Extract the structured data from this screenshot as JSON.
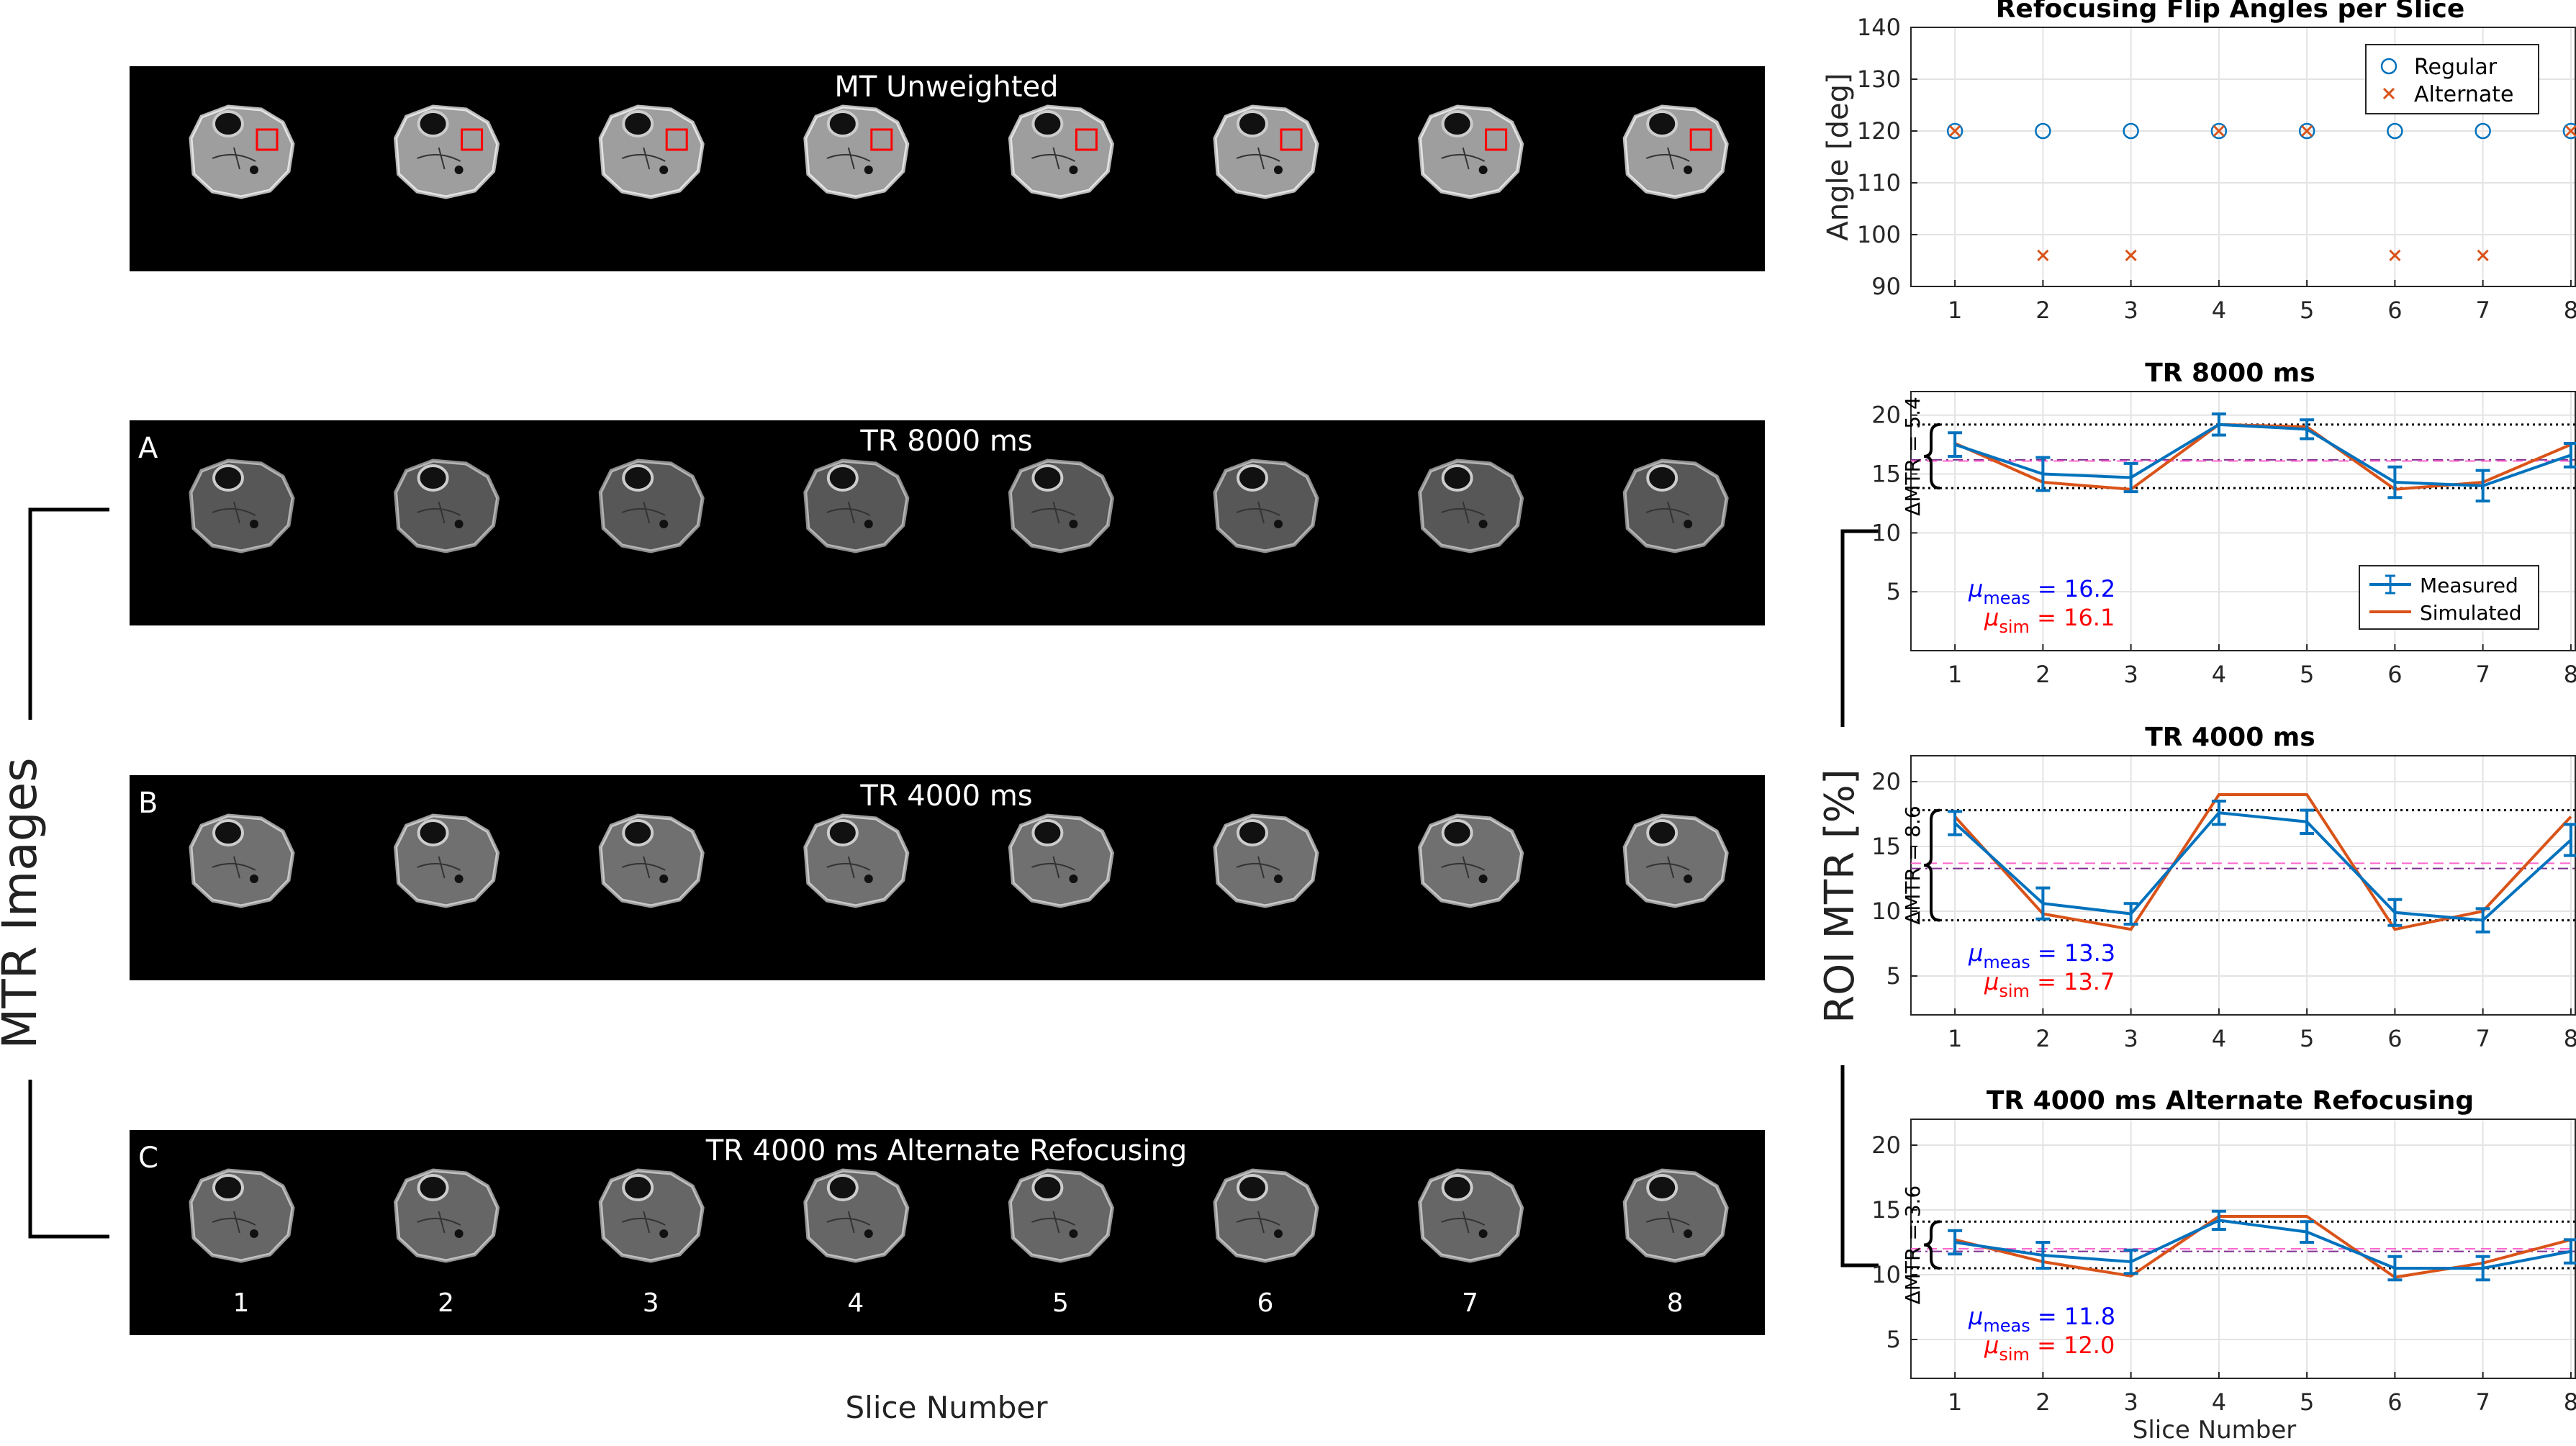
{
  "colors": {
    "measured": "#0072BD",
    "simulated": "#D95319",
    "mu_meas": "#0000FF",
    "mu_sim": "#FF0000",
    "roi_box": "#FF0000"
  },
  "left": {
    "ylabel": "MTR Images",
    "xlabel": "Slice Number",
    "slice_numbers": [
      "1",
      "2",
      "3",
      "4",
      "5",
      "6",
      "7",
      "8"
    ],
    "strips": [
      {
        "letter": "",
        "title": "MT Unweighted",
        "brightness": 0.62,
        "roi": true,
        "show_numbers": false
      },
      {
        "letter": "A",
        "title": "TR 8000 ms",
        "brightness": 0.34,
        "roi": false,
        "show_numbers": false
      },
      {
        "letter": "B",
        "title": "TR 4000 ms",
        "brightness": 0.44,
        "roi": false,
        "show_numbers": false
      },
      {
        "letter": "C",
        "title": "TR 4000 ms Alternate Refocusing",
        "brightness": 0.4,
        "roi": false,
        "show_numbers": true
      }
    ]
  },
  "right": {
    "shared_ylabel": "ROI MTR [%]",
    "xlabel": "Slice Number"
  },
  "chart_data": [
    {
      "type": "scatter",
      "title": "Refocusing Flip Angles per Slice",
      "xlabel": "",
      "ylabel": "Angle [deg]",
      "x": [
        1,
        2,
        3,
        4,
        5,
        6,
        7,
        8
      ],
      "xlim": [
        0.5,
        8.05
      ],
      "ylim": [
        90,
        140
      ],
      "yticks": [
        90,
        100,
        110,
        120,
        130,
        140
      ],
      "grid": true,
      "legend": "top-right",
      "series": [
        {
          "name": "Regular",
          "marker": "circle",
          "values": [
            120,
            120,
            120,
            120,
            120,
            120,
            120,
            120
          ]
        },
        {
          "name": "Alternate",
          "marker": "x",
          "values": [
            120,
            96,
            96,
            120,
            120,
            96,
            96,
            120
          ]
        }
      ]
    },
    {
      "type": "line",
      "title": "TR 8000 ms",
      "xlabel": "",
      "ylabel": "",
      "x": [
        1,
        2,
        3,
        4,
        5,
        6,
        7,
        8
      ],
      "xlim": [
        0.5,
        8.05
      ],
      "ylim": [
        0,
        22
      ],
      "yticks": [
        5,
        10,
        15,
        20
      ],
      "grid": true,
      "legend": "bottom-right",
      "series": [
        {
          "name": "Measured",
          "values": [
            17.5,
            15.0,
            14.7,
            19.2,
            18.8,
            14.3,
            14.0,
            16.6
          ],
          "errors": [
            1.0,
            1.4,
            1.2,
            0.9,
            0.8,
            1.3,
            1.3,
            1.0
          ]
        },
        {
          "name": "Simulated",
          "values": [
            17.6,
            14.3,
            13.7,
            19.2,
            19.0,
            13.7,
            14.3,
            17.5
          ]
        }
      ],
      "band": [
        13.8,
        19.2
      ],
      "mean_measured": 16.2,
      "mean_simulated": 16.1,
      "delta_label": "ΔMTR = 5.4",
      "mu_meas_text": "= 16.2",
      "mu_sim_text": "= 16.1"
    },
    {
      "type": "line",
      "title": "TR 4000 ms",
      "xlabel": "",
      "ylabel": "",
      "x": [
        1,
        2,
        3,
        4,
        5,
        6,
        7,
        8
      ],
      "xlim": [
        0.5,
        8.05
      ],
      "ylim": [
        2,
        22
      ],
      "yticks": [
        5,
        10,
        15,
        20
      ],
      "grid": true,
      "series": [
        {
          "name": "Measured",
          "values": [
            16.8,
            10.6,
            9.8,
            17.6,
            16.9,
            9.9,
            9.3,
            15.5
          ],
          "errors": [
            0.9,
            1.2,
            0.8,
            0.9,
            0.9,
            1.0,
            0.9,
            1.2
          ]
        },
        {
          "name": "Simulated",
          "values": [
            17.3,
            9.8,
            8.6,
            19.0,
            19.0,
            8.6,
            10.0,
            17.3
          ]
        }
      ],
      "band": [
        9.3,
        17.8
      ],
      "mean_measured": 13.3,
      "mean_simulated": 13.7,
      "delta_label": "ΔMTR = 8.6",
      "mu_meas_text": "= 13.3",
      "mu_sim_text": "= 13.7"
    },
    {
      "type": "line",
      "title": "TR 4000 ms Alternate Refocusing",
      "xlabel": "Slice Number",
      "ylabel": "",
      "x": [
        1,
        2,
        3,
        4,
        5,
        6,
        7,
        8
      ],
      "xlim": [
        0.5,
        8.05
      ],
      "ylim": [
        2,
        22
      ],
      "yticks": [
        5,
        10,
        15,
        20
      ],
      "grid": true,
      "series": [
        {
          "name": "Measured",
          "values": [
            12.5,
            11.5,
            11.0,
            14.2,
            13.3,
            10.5,
            10.5,
            11.8
          ],
          "errors": [
            0.9,
            1.0,
            0.9,
            0.7,
            0.8,
            0.9,
            0.9,
            0.9
          ]
        },
        {
          "name": "Simulated",
          "values": [
            12.7,
            11.0,
            9.9,
            14.5,
            14.5,
            9.8,
            10.9,
            12.7
          ]
        }
      ],
      "band": [
        10.5,
        14.1
      ],
      "mean_measured": 11.8,
      "mean_simulated": 12.0,
      "delta_label": "ΔMTR = 3.6",
      "mu_meas_text": "= 11.8",
      "mu_sim_text": "= 12.0"
    }
  ]
}
